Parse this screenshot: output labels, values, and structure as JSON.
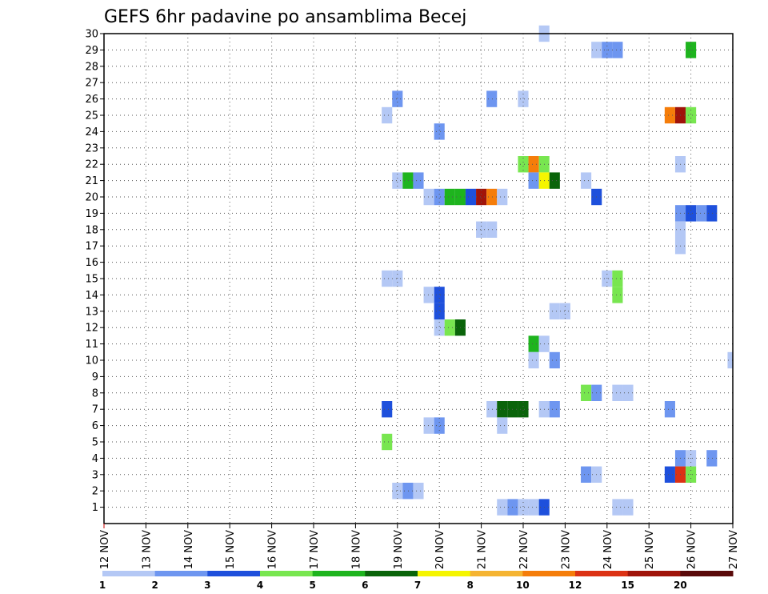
{
  "chart_data": {
    "type": "heatmap",
    "title": "GEFS 6hr padavine po ansamblima Becej",
    "x_tick_labels": [
      "12 NOV",
      "13 NOV",
      "14 NOV",
      "15 NOV",
      "16 NOV",
      "17 NOV",
      "18 NOV",
      "19 NOV",
      "20 NOV",
      "21 NOV",
      "22 NOV",
      "23 NOV",
      "24 NOV",
      "25 NOV",
      "26 NOV",
      "27 NOV"
    ],
    "xlim_days": [
      12,
      27
    ],
    "y_ticks": [
      1,
      2,
      3,
      4,
      5,
      6,
      7,
      8,
      9,
      10,
      11,
      12,
      13,
      14,
      15,
      16,
      17,
      18,
      19,
      20,
      21,
      22,
      23,
      24,
      25,
      26,
      27,
      28,
      29,
      30
    ],
    "ylim": [
      0,
      30
    ],
    "grid": "dotted",
    "colorbar": {
      "labels": [
        "1",
        "2",
        "3",
        "4",
        "5",
        "6",
        "7",
        "8",
        "10",
        "12",
        "15",
        "20"
      ],
      "colors": [
        "#b4c8f5",
        "#6e96f0",
        "#1e50dc",
        "#78e650",
        "#1eb41e",
        "#0a640a",
        "#f5f500",
        "#f5b432",
        "#f57d0a",
        "#dc3214",
        "#a0140a",
        "#5a0a0a"
      ]
    },
    "cell_hours": 6,
    "cells": [
      {
        "member": 30,
        "day": 22.5,
        "value": 1
      },
      {
        "member": 29,
        "day": 23.75,
        "value": 1
      },
      {
        "member": 29,
        "day": 24,
        "value": 2
      },
      {
        "member": 29,
        "day": 24.25,
        "value": 2
      },
      {
        "member": 29,
        "day": 26,
        "value": 5
      },
      {
        "member": 26,
        "day": 19,
        "value": 2
      },
      {
        "member": 26,
        "day": 21.25,
        "value": 2
      },
      {
        "member": 26,
        "day": 22,
        "value": 1
      },
      {
        "member": 25,
        "day": 18.75,
        "value": 1
      },
      {
        "member": 25,
        "day": 25.5,
        "value": 10
      },
      {
        "member": 25,
        "day": 25.75,
        "value": 15
      },
      {
        "member": 25,
        "day": 26,
        "value": 4
      },
      {
        "member": 24,
        "day": 20,
        "value": 2
      },
      {
        "member": 22,
        "day": 22,
        "value": 4
      },
      {
        "member": 22,
        "day": 22.25,
        "value": 10
      },
      {
        "member": 22,
        "day": 22.5,
        "value": 4
      },
      {
        "member": 22,
        "day": 25.75,
        "value": 1
      },
      {
        "member": 21,
        "day": 19,
        "value": 1
      },
      {
        "member": 21,
        "day": 19.25,
        "value": 5
      },
      {
        "member": 21,
        "day": 19.5,
        "value": 2
      },
      {
        "member": 21,
        "day": 22.25,
        "value": 2
      },
      {
        "member": 21,
        "day": 22.5,
        "value": 7
      },
      {
        "member": 21,
        "day": 22.75,
        "value": 6
      },
      {
        "member": 21,
        "day": 23.5,
        "value": 1
      },
      {
        "member": 20,
        "day": 19.75,
        "value": 1
      },
      {
        "member": 20,
        "day": 20,
        "value": 2
      },
      {
        "member": 20,
        "day": 20.25,
        "value": 5
      },
      {
        "member": 20,
        "day": 20.5,
        "value": 5
      },
      {
        "member": 20,
        "day": 20.75,
        "value": 3
      },
      {
        "member": 20,
        "day": 21,
        "value": 15
      },
      {
        "member": 20,
        "day": 21.25,
        "value": 10
      },
      {
        "member": 20,
        "day": 21.5,
        "value": 1
      },
      {
        "member": 20,
        "day": 23.75,
        "value": 3
      },
      {
        "member": 19,
        "day": 25.75,
        "value": 2
      },
      {
        "member": 19,
        "day": 26,
        "value": 3
      },
      {
        "member": 19,
        "day": 26.25,
        "value": 2
      },
      {
        "member": 19,
        "day": 26.5,
        "value": 3
      },
      {
        "member": 18,
        "day": 21,
        "value": 1
      },
      {
        "member": 18,
        "day": 21.25,
        "value": 1
      },
      {
        "member": 18,
        "day": 25.75,
        "value": 1
      },
      {
        "member": 17,
        "day": 25.75,
        "value": 1
      },
      {
        "member": 15,
        "day": 18.75,
        "value": 1
      },
      {
        "member": 15,
        "day": 19,
        "value": 1
      },
      {
        "member": 15,
        "day": 24,
        "value": 1
      },
      {
        "member": 15,
        "day": 24.25,
        "value": 4
      },
      {
        "member": 14,
        "day": 24.25,
        "value": 4
      },
      {
        "member": 14,
        "day": 20,
        "value": 3
      },
      {
        "member": 14,
        "day": 19.75,
        "value": 1
      },
      {
        "member": 13,
        "day": 20,
        "value": 3
      },
      {
        "member": 13,
        "day": 22.75,
        "value": 1
      },
      {
        "member": 13,
        "day": 23,
        "value": 1
      },
      {
        "member": 12,
        "day": 20,
        "value": 1
      },
      {
        "member": 12,
        "day": 20.25,
        "value": 4
      },
      {
        "member": 12,
        "day": 20.5,
        "value": 6
      },
      {
        "member": 11,
        "day": 22.25,
        "value": 5
      },
      {
        "member": 11,
        "day": 22.5,
        "value": 1
      },
      {
        "member": 10,
        "day": 22.25,
        "value": 1
      },
      {
        "member": 10,
        "day": 22.75,
        "value": 2
      },
      {
        "member": 10,
        "day": 27,
        "value": 1
      },
      {
        "member": 8,
        "day": 23.5,
        "value": 4
      },
      {
        "member": 8,
        "day": 23.75,
        "value": 2
      },
      {
        "member": 8,
        "day": 24.25,
        "value": 1
      },
      {
        "member": 8,
        "day": 24.5,
        "value": 1
      },
      {
        "member": 7,
        "day": 18.75,
        "value": 3
      },
      {
        "member": 7,
        "day": 21.25,
        "value": 1
      },
      {
        "member": 7,
        "day": 21.5,
        "value": 6
      },
      {
        "member": 7,
        "day": 21.75,
        "value": 6
      },
      {
        "member": 7,
        "day": 22,
        "value": 6
      },
      {
        "member": 7,
        "day": 22.5,
        "value": 1
      },
      {
        "member": 7,
        "day": 22.75,
        "value": 2
      },
      {
        "member": 7,
        "day": 25.5,
        "value": 2
      },
      {
        "member": 6,
        "day": 19.75,
        "value": 1
      },
      {
        "member": 6,
        "day": 20,
        "value": 2
      },
      {
        "member": 6,
        "day": 21.5,
        "value": 1
      },
      {
        "member": 5,
        "day": 18.75,
        "value": 4
      },
      {
        "member": 4,
        "day": 25.75,
        "value": 2
      },
      {
        "member": 4,
        "day": 26,
        "value": 1
      },
      {
        "member": 4,
        "day": 26.5,
        "value": 2
      },
      {
        "member": 3,
        "day": 23.5,
        "value": 2
      },
      {
        "member": 3,
        "day": 23.75,
        "value": 1
      },
      {
        "member": 3,
        "day": 25.5,
        "value": 3
      },
      {
        "member": 3,
        "day": 25.75,
        "value": 12
      },
      {
        "member": 3,
        "day": 26,
        "value": 4
      },
      {
        "member": 2,
        "day": 19,
        "value": 1
      },
      {
        "member": 2,
        "day": 19.25,
        "value": 2
      },
      {
        "member": 2,
        "day": 19.5,
        "value": 1
      },
      {
        "member": 1,
        "day": 21.5,
        "value": 1
      },
      {
        "member": 1,
        "day": 21.75,
        "value": 2
      },
      {
        "member": 1,
        "day": 22,
        "value": 1
      },
      {
        "member": 1,
        "day": 22.25,
        "value": 1
      },
      {
        "member": 1,
        "day": 22.5,
        "value": 3
      },
      {
        "member": 1,
        "day": 24.25,
        "value": 1
      },
      {
        "member": 1,
        "day": 24.5,
        "value": 1
      }
    ]
  }
}
